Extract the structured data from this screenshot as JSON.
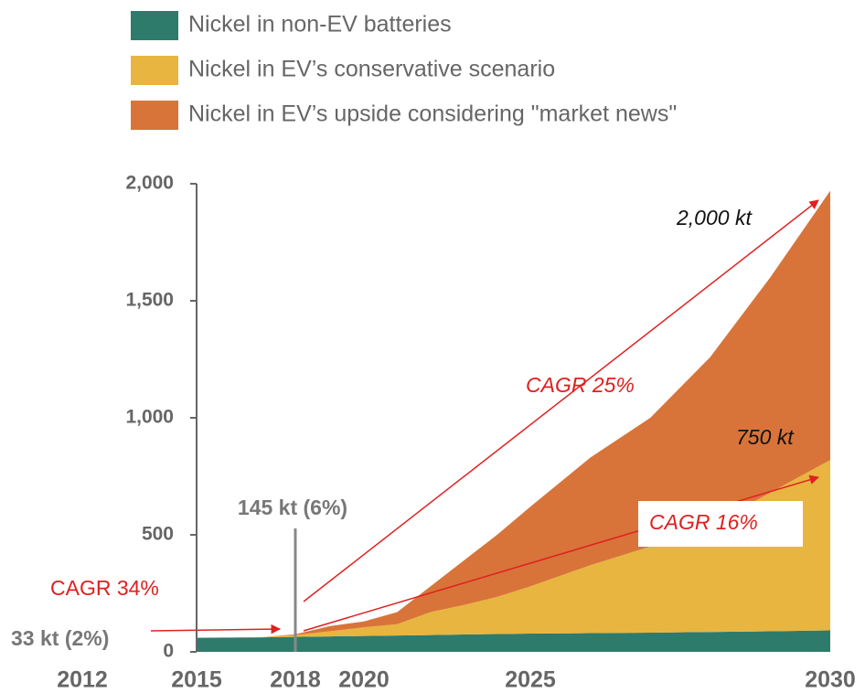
{
  "chart_data": {
    "type": "stacked_area",
    "x": [
      2015,
      2016,
      2017,
      2018,
      2019,
      2020,
      2021,
      2022,
      2023,
      2024,
      2025,
      2026,
      2027,
      2028,
      2029,
      2030
    ],
    "series": [
      {
        "name": "Nickel in non-EV batteries",
        "color": "#2e7b6c",
        "values": [
          60,
          61,
          62,
          64,
          66,
          68,
          70,
          72,
          74,
          76,
          78,
          80,
          82,
          85,
          88,
          92
        ]
      },
      {
        "name": "Nickel in EV’s conservative scenario",
        "color": "#e8b540",
        "values": [
          0,
          0,
          1,
          8,
          22,
          37,
          48,
          98,
          126,
          159,
          202,
          290,
          368,
          455,
          592,
          728
        ]
      },
      {
        "name": "Nickel in EV’s upside considering \"market news\"",
        "color": "#d8743a",
        "values": [
          0,
          0,
          0,
          3,
          22,
          25,
          52,
          110,
          190,
          265,
          340,
          460,
          550,
          720,
          920,
          1150
        ]
      }
    ],
    "ylim": [
      0,
      2000
    ],
    "yticks": [
      0,
      500,
      {
        "value": 1000,
        "label": "1,000"
      },
      {
        "value": 1500,
        "label": "1,500"
      },
      {
        "value": 2000,
        "label": "2,000"
      }
    ],
    "xticks": [
      2012,
      2015,
      2018,
      2020,
      2025,
      2030
    ],
    "annotations": [
      "145 kt (6%)",
      "33 kt (2%)",
      "CAGR 34%",
      "CAGR 25%",
      "CAGR 16%",
      "2,000 kt",
      "750 kt"
    ]
  }
}
